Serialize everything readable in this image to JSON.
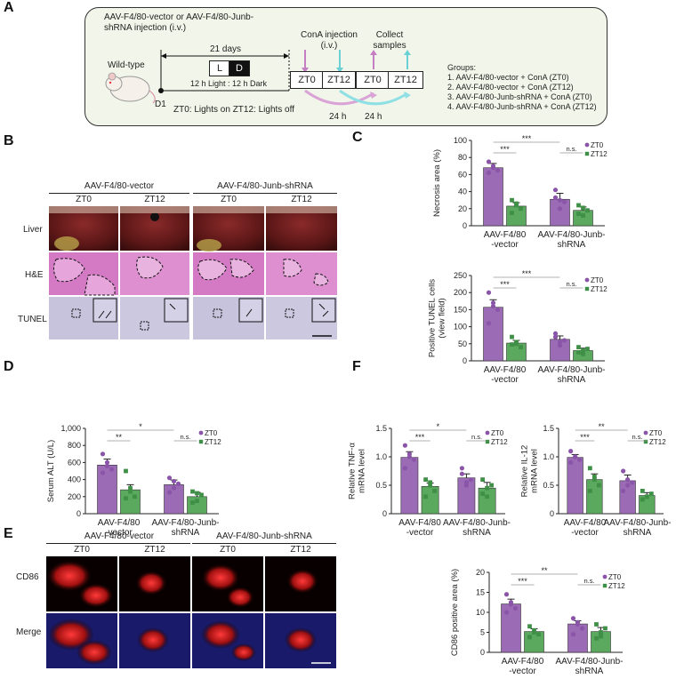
{
  "panel_labels": [
    "A",
    "B",
    "C",
    "D",
    "E",
    "F"
  ],
  "schematic": {
    "injection_text": "AAV-F4/80-vector or AAV-F4/80-Junb-shRNA injection (i.v.)",
    "days": "21 days",
    "light_label": "L",
    "dark_label": "D",
    "cycle_text": "12 h Light : 12 h Dark",
    "mouse_label": "Wild-type",
    "day_label": "D1",
    "cona_text": "ConA injection (i.v.)",
    "collect_text": "Collect samples",
    "zt_boxes": [
      "ZT0",
      "ZT12",
      "ZT0",
      "ZT12"
    ],
    "interval_1": "24 h",
    "interval_2": "24 h",
    "footnote": "ZT0: Lights on ZT12: Lights off",
    "groups_title": "Groups:",
    "groups": [
      "1. AAV-F4/80-vector + ConA (ZT0)",
      "2. AAV-F4/80-vector + ConA (ZT12)",
      "3. AAV-F4/80-Junb-shRNA + ConA (ZT0)",
      "4. AAV-F4/80-Junb-shRNA + ConA (ZT12)"
    ]
  },
  "histology_B": {
    "group_titles": [
      "AAV-F4/80-vector",
      "AAV-F4/80-Junb-shRNA"
    ],
    "columns": [
      "ZT0",
      "ZT12",
      "ZT0",
      "ZT12"
    ],
    "rows": [
      "Liver",
      "H&E",
      "TUNEL"
    ]
  },
  "images_E": {
    "group_titles": [
      "AAV-F4/80-vector",
      "AAV-F4/80-Junb-shRNA"
    ],
    "columns": [
      "ZT0",
      "ZT12",
      "ZT0",
      "ZT12"
    ],
    "rows": [
      "CD86",
      "Merge"
    ]
  },
  "colors": {
    "zt0": "#9b6bb5",
    "zt12": "#5aa95e",
    "zt0_dot": "#8a55a8",
    "zt12_dot": "#3f8f47"
  },
  "chart_data": [
    {
      "id": "necrosis",
      "type": "bar",
      "ylabel": "Necrosis area (%)",
      "ylim": [
        0,
        100
      ],
      "yticks": [
        0,
        20,
        40,
        60,
        80,
        100
      ],
      "categories": [
        "AAV-F4/80\n-vector",
        "AAV-F4/80-Junb-\nshRNA"
      ],
      "series": [
        {
          "name": "ZT0",
          "values": [
            68,
            31
          ],
          "errors": [
            5,
            7
          ],
          "points": [
            [
              75,
              68,
              65,
              62,
              70
            ],
            [
              42,
              20,
              28,
              33,
              30
            ]
          ]
        },
        {
          "name": "ZT12",
          "values": [
            23,
            18
          ],
          "errors": [
            4,
            4
          ],
          "points": [
            [
              30,
              24,
              20,
              15,
              26
            ],
            [
              24,
              12,
              18,
              14,
              21
            ]
          ]
        }
      ],
      "sig": [
        {
          "label": "***",
          "between": "g1 ZT0 - g1 ZT12"
        },
        {
          "label": "***",
          "between": "g1 ZT0 - g2 ZT0"
        },
        {
          "label": "n.s.",
          "between": "g2 ZT0 - g2 ZT12"
        }
      ]
    },
    {
      "id": "tunel",
      "type": "bar",
      "ylabel": "Positive TUNEL cells\n(view field)",
      "ylim": [
        0,
        250
      ],
      "yticks": [
        0,
        50,
        100,
        150,
        200,
        250
      ],
      "categories": [
        "AAV-F4/80\n-vector",
        "AAV-F4/80-Junb-\nshRNA"
      ],
      "series": [
        {
          "name": "ZT0",
          "values": [
            157,
            63
          ],
          "errors": [
            22,
            10
          ],
          "points": [
            [
              200,
              170,
              150,
              110,
              160
            ],
            [
              80,
              45,
              60,
              70,
              55
            ]
          ]
        },
        {
          "name": "ZT12",
          "values": [
            52,
            30
          ],
          "errors": [
            8,
            7
          ],
          "points": [
            [
              70,
              55,
              40,
              48,
              50
            ],
            [
              40,
              20,
              35,
              25,
              30
            ]
          ]
        }
      ],
      "sig": [
        {
          "label": "***",
          "between": "g1 ZT0 - g1 ZT12"
        },
        {
          "label": "***",
          "between": "g1 ZT0 - g2 ZT0"
        },
        {
          "label": "n.s.",
          "between": "g2 ZT0 - g2 ZT12"
        }
      ]
    },
    {
      "id": "alt",
      "type": "bar",
      "ylabel": "Serum ALT (U/L)",
      "ylim": [
        0,
        1000
      ],
      "yticks": [
        0,
        200,
        400,
        600,
        800,
        1000
      ],
      "yticklabels": [
        "0",
        "200",
        "400",
        "600",
        "800",
        "1,000"
      ],
      "categories": [
        "AAV-F4/80\n-vector",
        "AAV-F4/80-Junb-\nshRNA"
      ],
      "series": [
        {
          "name": "ZT0",
          "values": [
            570,
            340
          ],
          "errors": [
            70,
            55
          ],
          "points": [
            [
              700,
              600,
              520,
              480,
              560
            ],
            [
              420,
              300,
              350,
              250,
              380
            ]
          ]
        },
        {
          "name": "ZT12",
          "values": [
            280,
            200
          ],
          "errors": [
            60,
            50
          ],
          "points": [
            [
              500,
              300,
              200,
              180,
              260
            ],
            [
              260,
              150,
              220,
              130,
              240
            ]
          ]
        }
      ],
      "sig": [
        {
          "label": "**",
          "between": "g1 ZT0 - g1 ZT12"
        },
        {
          "label": "*",
          "between": "g1 ZT0 - g2 ZT0"
        },
        {
          "label": "n.s.",
          "between": "g2 ZT0 - g2 ZT12"
        }
      ]
    },
    {
      "id": "tnf",
      "type": "bar",
      "ylabel": "Relative TNF-α\nmRNA level",
      "ylim": [
        0,
        1.5
      ],
      "yticks": [
        0,
        0.5,
        1.0,
        1.5
      ],
      "yticklabels": [
        "0",
        "0.5",
        "1.0",
        "1.5"
      ],
      "categories": [
        "AAV-F4/80\n-vector",
        "AAV-F4/80-Junb-\nshRNA"
      ],
      "series": [
        {
          "name": "ZT0",
          "values": [
            0.99,
            0.63
          ],
          "errors": [
            0.1,
            0.07
          ],
          "points": [
            [
              1.2,
              1.0,
              0.95,
              0.8,
              1.05
            ],
            [
              0.8,
              0.55,
              0.6,
              0.7,
              0.5
            ]
          ]
        },
        {
          "name": "ZT12",
          "values": [
            0.48,
            0.45
          ],
          "errors": [
            0.06,
            0.1
          ],
          "points": [
            [
              0.6,
              0.5,
              0.4,
              0.3,
              0.55
            ],
            [
              0.6,
              0.3,
              0.5,
              0.35,
              0.45
            ]
          ]
        }
      ],
      "sig": [
        {
          "label": "***",
          "between": "g1 ZT0 - g1 ZT12"
        },
        {
          "label": "*",
          "between": "g1 ZT0 - g2 ZT0"
        },
        {
          "label": "n.s.",
          "between": "g2 ZT0 - g2 ZT12"
        }
      ]
    },
    {
      "id": "il12",
      "type": "bar",
      "ylabel": "Relative IL-12\nmRNA level",
      "ylim": [
        0,
        1.5
      ],
      "yticks": [
        0,
        0.5,
        1.0,
        1.5
      ],
      "yticklabels": [
        "0",
        "0.5",
        "1.0",
        "1.5"
      ],
      "categories": [
        "AAV-F4/80\n-vector",
        "AAV-F4/80-Junb-\nshRNA"
      ],
      "series": [
        {
          "name": "ZT0",
          "values": [
            0.99,
            0.58
          ],
          "errors": [
            0.05,
            0.1
          ],
          "points": [
            [
              1.1,
              1.0,
              0.95,
              0.9,
              1.0
            ],
            [
              0.75,
              0.5,
              0.55,
              0.4,
              0.6
            ]
          ]
        },
        {
          "name": "ZT12",
          "values": [
            0.6,
            0.32
          ],
          "errors": [
            0.1,
            0.05
          ],
          "points": [
            [
              0.8,
              0.65,
              0.5,
              0.4,
              0.6
            ],
            [
              0.4,
              0.3,
              0.35,
              0.25,
              0.3
            ]
          ]
        }
      ],
      "sig": [
        {
          "label": "***",
          "between": "g1 ZT0 - g1 ZT12"
        },
        {
          "label": "**",
          "between": "g1 ZT0 - g2 ZT0"
        },
        {
          "label": "n.s.",
          "between": "g2 ZT0 - g2 ZT12"
        }
      ]
    },
    {
      "id": "cd86",
      "type": "bar",
      "ylabel": "CD86 positive area (%)",
      "ylim": [
        0,
        20
      ],
      "yticks": [
        0,
        5,
        10,
        15,
        20
      ],
      "categories": [
        "AAV-F4/80\n-vector",
        "AAV-F4/80-Junb-\nshRNA"
      ],
      "series": [
        {
          "name": "ZT0",
          "values": [
            12.1,
            7.1
          ],
          "errors": [
            1.2,
            0.8
          ],
          "points": [
            [
              14.5,
              12.5,
              11,
              10,
              12
            ],
            [
              8.5,
              7,
              6,
              4.5,
              7.5
            ]
          ]
        },
        {
          "name": "ZT12",
          "values": [
            5.2,
            5.2
          ],
          "errors": [
            0.7,
            1.0
          ],
          "points": [
            [
              6.5,
              5,
              4.5,
              3.8,
              5.5
            ],
            [
              7,
              4,
              6,
              3.5,
              5
            ]
          ]
        }
      ],
      "sig": [
        {
          "label": "***",
          "between": "g1 ZT0 - g1 ZT12"
        },
        {
          "label": "**",
          "between": "g1 ZT0 - g2 ZT0"
        },
        {
          "label": "n.s.",
          "between": "g2 ZT0 - g2 ZT12"
        }
      ]
    }
  ]
}
